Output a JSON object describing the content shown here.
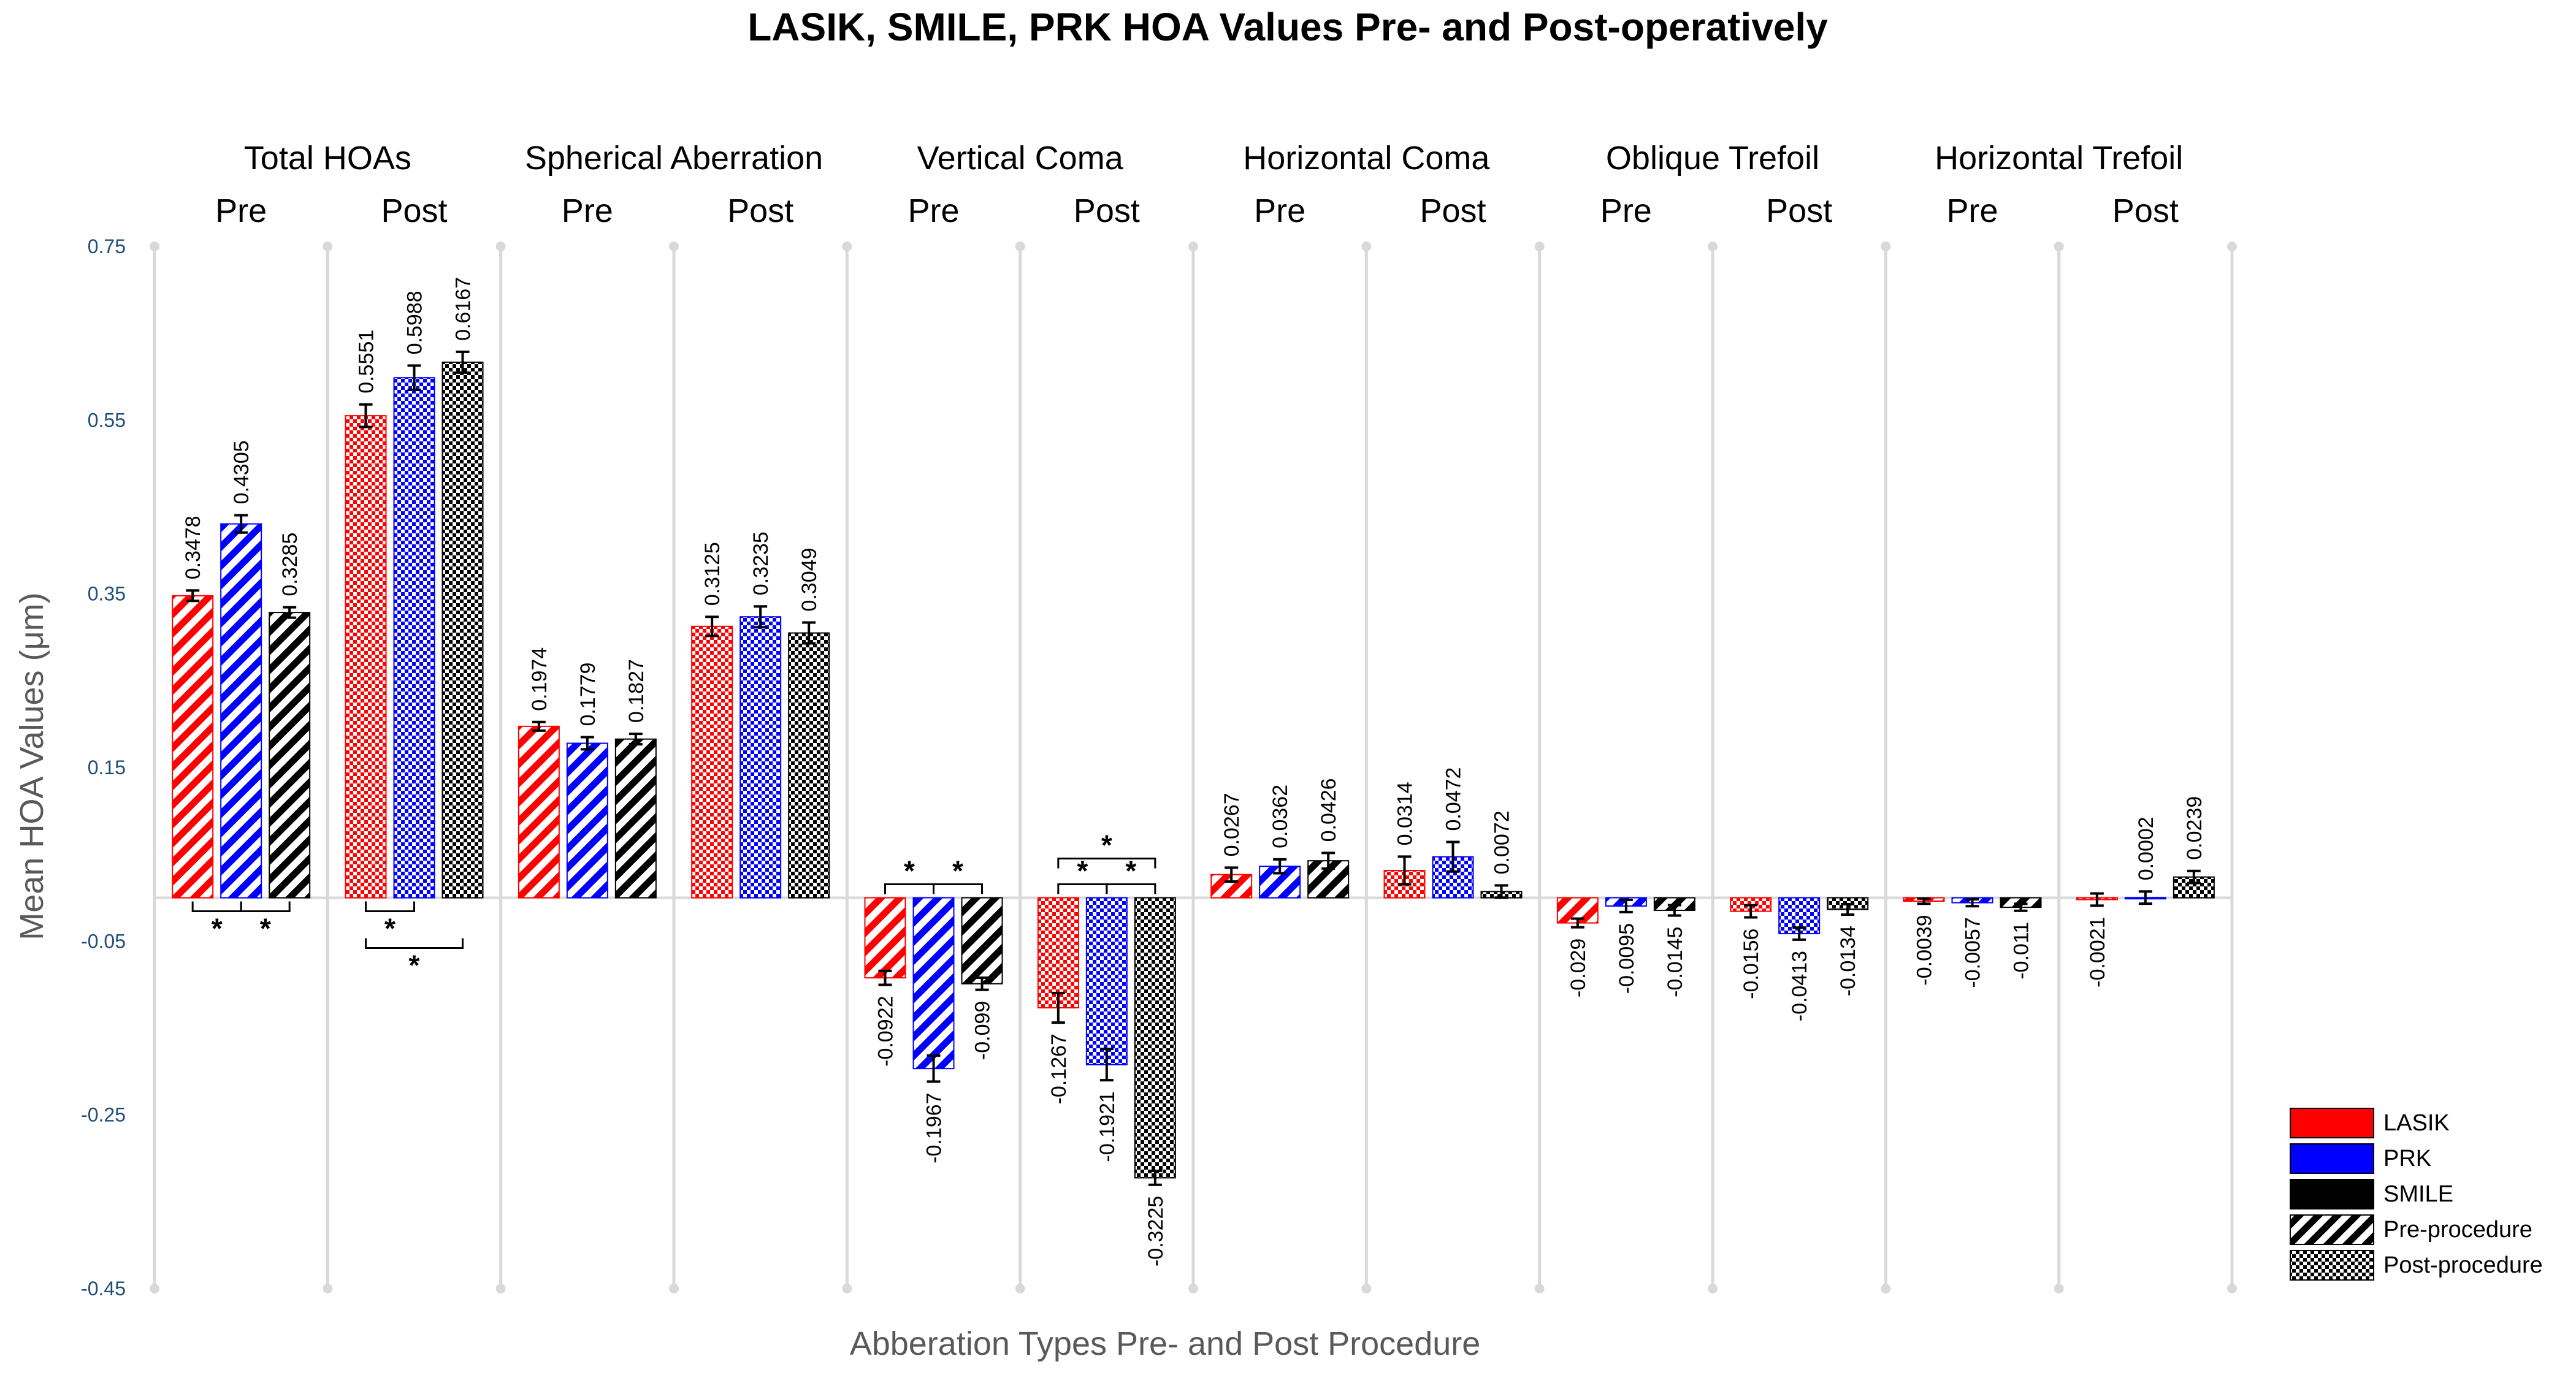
{
  "chart_data": {
    "type": "bar",
    "title": "LASIK, SMILE, PRK HOA Values Pre- and Post-operatively",
    "xlabel": "Abberation Types Pre- and Post Procedure",
    "ylabel": "Mean HOA Values (μm)",
    "ylim": [
      -0.45,
      0.75
    ],
    "yticks": [
      "0.75",
      "0.55",
      "0.35",
      "0.15",
      "-0.05",
      "-0.25",
      "-0.45"
    ],
    "series_names": [
      "LASIK",
      "PRK",
      "SMILE"
    ],
    "series_colors": [
      "#ff0000",
      "#0000ff",
      "#000000"
    ],
    "phase_labels": [
      "Pre",
      "Post"
    ],
    "groups": [
      {
        "name": "Total HOAs",
        "pre": [
          0.3478,
          0.4305,
          0.3285
        ],
        "pre_labels": [
          "0.3478",
          "0.4305",
          "0.3285"
        ],
        "pre_err": [
          0.006,
          0.01,
          0.006
        ],
        "post": [
          0.5551,
          0.5988,
          0.6167
        ],
        "post_labels": [
          "0.5551",
          "0.5988",
          "0.6167"
        ],
        "post_err": [
          0.013,
          0.014,
          0.012
        ]
      },
      {
        "name": "Spherical Aberration",
        "pre": [
          0.1974,
          0.1779,
          0.1827
        ],
        "pre_labels": [
          "0.1974",
          "0.1779",
          "0.1827"
        ],
        "pre_err": [
          0.005,
          0.007,
          0.006
        ],
        "post": [
          0.3125,
          0.3235,
          0.3049
        ],
        "post_labels": [
          "0.3125",
          "0.3235",
          "0.3049"
        ],
        "post_err": [
          0.011,
          0.012,
          0.012
        ]
      },
      {
        "name": "Vertical Coma",
        "pre": [
          -0.0922,
          -0.1967,
          -0.099
        ],
        "pre_labels": [
          "-0.0922",
          "-0.1967",
          "-0.099"
        ],
        "pre_err": [
          0.008,
          0.015,
          0.007
        ],
        "post": [
          -0.1267,
          -0.1921,
          -0.3225
        ],
        "post_labels": [
          "-0.1267",
          "-0.1921",
          "-0.3225"
        ],
        "post_err": [
          0.017,
          0.018,
          0.008
        ]
      },
      {
        "name": "Horizontal Coma",
        "pre": [
          0.0267,
          0.0362,
          0.0426
        ],
        "pre_labels": [
          "0.0267",
          "0.0362",
          "0.0426"
        ],
        "pre_err": [
          0.008,
          0.008,
          0.009
        ],
        "post": [
          0.0314,
          0.0472,
          0.0072
        ],
        "post_labels": [
          "0.0314",
          "0.0472",
          "0.0072"
        ],
        "post_err": [
          0.016,
          0.017,
          0.007
        ]
      },
      {
        "name": "Oblique Trefoil",
        "pre": [
          -0.029,
          -0.0095,
          -0.0145
        ],
        "pre_labels": [
          "-0.029",
          "-0.0095",
          "-0.0145"
        ],
        "pre_err": [
          0.005,
          0.007,
          0.006
        ],
        "post": [
          -0.0156,
          -0.0413,
          -0.0134
        ],
        "post_labels": [
          "-0.0156",
          "-0.0413",
          "-0.0134"
        ],
        "post_err": [
          0.007,
          0.007,
          0.006
        ]
      },
      {
        "name": "Horizontal Trefoil",
        "pre": [
          -0.0039,
          -0.0057,
          -0.011
        ],
        "pre_labels": [
          "-0.0039",
          "-0.0057",
          "-0.011"
        ],
        "pre_err": [
          0.003,
          0.004,
          0.004
        ],
        "post": [
          -0.0021,
          0.0002,
          0.0239
        ],
        "post_labels": [
          "-0.0021",
          "0.0002",
          "0.0239"
        ],
        "post_err": [
          0.007,
          0.007,
          0.007
        ]
      }
    ],
    "significance": [
      {
        "group": 0,
        "phase": "pre",
        "from": 0,
        "to": 1,
        "level": 0,
        "mark": "*"
      },
      {
        "group": 0,
        "phase": "pre",
        "from": 1,
        "to": 2,
        "level": 0,
        "mark": "*"
      },
      {
        "group": 0,
        "phase": "post",
        "from": 0,
        "to": 1,
        "level": 0,
        "mark": "*"
      },
      {
        "group": 0,
        "phase": "post",
        "from": 0,
        "to": 2,
        "level": 1,
        "mark": "*"
      },
      {
        "group": 2,
        "phase": "pre",
        "from": 0,
        "to": 1,
        "level": 0,
        "mark": "*"
      },
      {
        "group": 2,
        "phase": "pre",
        "from": 1,
        "to": 2,
        "level": 0,
        "mark": "*"
      },
      {
        "group": 2,
        "phase": "post",
        "from": 0,
        "to": 1,
        "level": 0,
        "mark": "*"
      },
      {
        "group": 2,
        "phase": "post",
        "from": 1,
        "to": 2,
        "level": 0,
        "mark": "*"
      },
      {
        "group": 2,
        "phase": "post",
        "from": 0,
        "to": 2,
        "level": 1,
        "mark": "*"
      }
    ],
    "legend": {
      "position": "bottom-right",
      "items": [
        {
          "label": "LASIK",
          "kind": "solid",
          "color": "#ff0000"
        },
        {
          "label": "PRK",
          "kind": "solid",
          "color": "#0000ff"
        },
        {
          "label": "SMILE",
          "kind": "solid",
          "color": "#000000"
        },
        {
          "label": "Pre-procedure",
          "kind": "stripes",
          "color": "#000000"
        },
        {
          "label": "Post-procedure",
          "kind": "checker",
          "color": "#000000"
        }
      ]
    }
  }
}
